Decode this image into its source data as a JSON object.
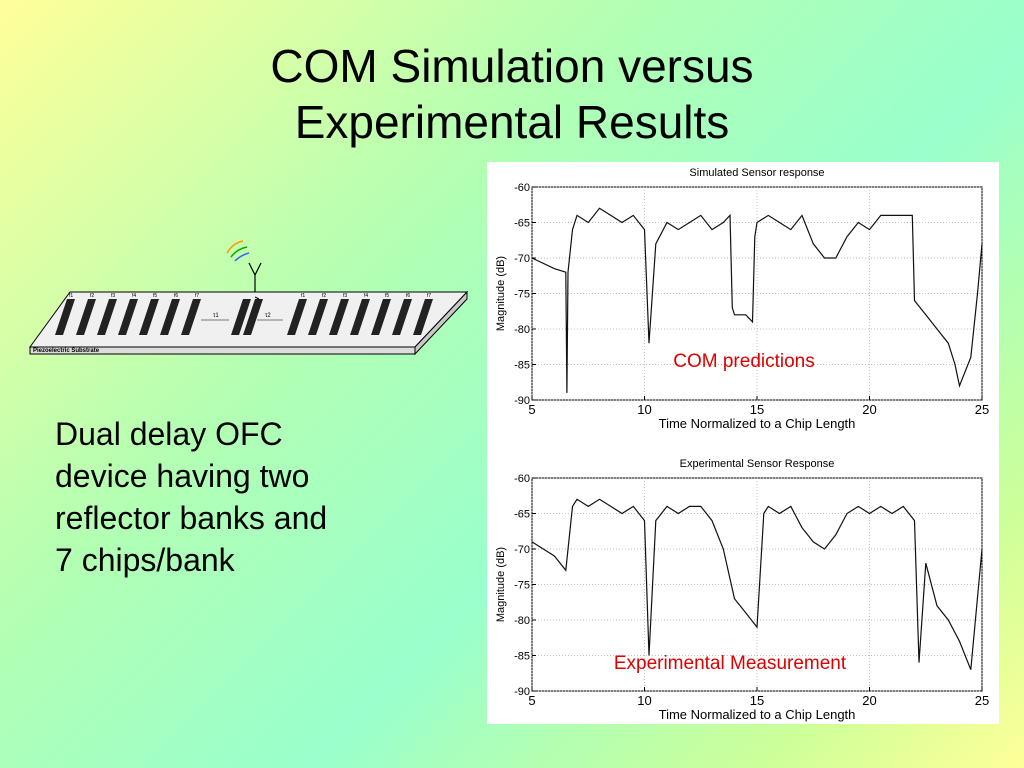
{
  "slide": {
    "title_line1": "COM Simulation versus",
    "title_line2": "Experimental Results",
    "body_lines": [
      "Dual delay OFC",
      "device having two",
      "reflector banks and",
      "7 chips/bank"
    ]
  },
  "device_diagram": {
    "substrate_label": "Piezoelectric Substrate",
    "bank1_labels": [
      "f1",
      "f2",
      "f3",
      "f4",
      "f5",
      "f6",
      "f7"
    ],
    "bank2_labels": [
      "f1",
      "f2",
      "f3",
      "f4",
      "f5",
      "f6",
      "f7"
    ],
    "delay_labels": [
      "τ1",
      "τ2"
    ]
  },
  "colors": {
    "annotation": "#dd0000",
    "trace": "#111111",
    "grid": "#aaaaaa"
  },
  "chart_data": [
    {
      "type": "line",
      "title": "Simulated Sensor response",
      "xlabel": "Time Normalized to a Chip Length",
      "ylabel": "Magnitude (dB)",
      "xlim": [
        5,
        25
      ],
      "ylim": [
        -90,
        -60
      ],
      "xticks": [
        5,
        10,
        15,
        20,
        25
      ],
      "yticks": [
        -60,
        -65,
        -70,
        -75,
        -80,
        -85,
        -90
      ],
      "grid": true,
      "annotation": "COM predictions",
      "series": [
        {
          "x": [
            5,
            6,
            6.5,
            6.55,
            6.6,
            6.8,
            7,
            7.5,
            8,
            8.5,
            9,
            9.5,
            10,
            10.2,
            10.5,
            11,
            11.5,
            12,
            12.5,
            13,
            13.5,
            13.8,
            13.9,
            14,
            14.5,
            14.8,
            14.9,
            15,
            15.5,
            16,
            16.5,
            17,
            17.5,
            18,
            18.5,
            19,
            19.5,
            20,
            20.5,
            21,
            21.5,
            21.9,
            22,
            22.5,
            23,
            23.5,
            23.8,
            24,
            24.5,
            24.8,
            25
          ],
          "y": [
            -70,
            -71.5,
            -72,
            -89,
            -72,
            -66,
            -64,
            -65,
            -63,
            -64,
            -65,
            -64,
            -66,
            -82,
            -68,
            -65,
            -66,
            -65,
            -64,
            -66,
            -65,
            -64,
            -77,
            -78,
            -78,
            -79,
            -67,
            -65,
            -64,
            -65,
            -66,
            -64,
            -68,
            -70,
            -70,
            -67,
            -65,
            -66,
            -64,
            -64,
            -64,
            -64,
            -76,
            -78,
            -80,
            -82,
            -85,
            -88,
            -84,
            -75,
            -68
          ]
        }
      ]
    },
    {
      "type": "line",
      "title": "Experimental Sensor Response",
      "xlabel": "Time Normalized to a Chip Length",
      "ylabel": "Magnitude (dB)",
      "xlim": [
        5,
        25
      ],
      "ylim": [
        -90,
        -60
      ],
      "xticks": [
        5,
        10,
        15,
        20,
        25
      ],
      "yticks": [
        -60,
        -65,
        -70,
        -75,
        -80,
        -85,
        -90
      ],
      "grid": true,
      "annotation": "Experimental Measurement",
      "series": [
        {
          "x": [
            5,
            5.5,
            6,
            6.5,
            6.8,
            7,
            7.5,
            8,
            8.5,
            9,
            9.5,
            10,
            10.2,
            10.5,
            11,
            11.5,
            12,
            12.5,
            13,
            13.5,
            14,
            14.5,
            15,
            15.3,
            15.5,
            16,
            16.5,
            17,
            17.5,
            18,
            18.5,
            19,
            19.5,
            20,
            20.5,
            21,
            21.5,
            22,
            22.2,
            22.5,
            23,
            23.5,
            24,
            24.5,
            25
          ],
          "y": [
            -69,
            -70,
            -71,
            -73,
            -64,
            -63,
            -64,
            -63,
            -64,
            -65,
            -64,
            -66,
            -85,
            -66,
            -64,
            -65,
            -64,
            -64,
            -66,
            -70,
            -77,
            -79,
            -81,
            -65,
            -64,
            -65,
            -64,
            -67,
            -69,
            -70,
            -68,
            -65,
            -64,
            -65,
            -64,
            -65,
            -64,
            -66,
            -86,
            -72,
            -78,
            -80,
            -83,
            -87,
            -70
          ]
        }
      ]
    }
  ]
}
